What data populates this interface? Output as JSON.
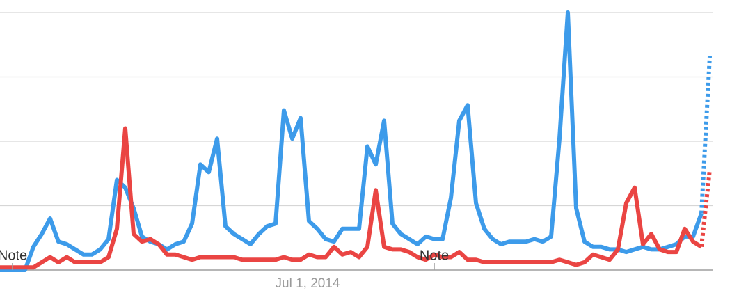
{
  "chart_data": {
    "type": "line",
    "categories": [
      null,
      null,
      null,
      null,
      null,
      null,
      null,
      null,
      null,
      null,
      null,
      null,
      null,
      null,
      null,
      null,
      null,
      null,
      null,
      null,
      null,
      null,
      null,
      null,
      null,
      null,
      null,
      null,
      null,
      null,
      null,
      null,
      null,
      null,
      null,
      null,
      null,
      "Jul 1, 2014",
      null,
      null,
      null,
      null,
      null,
      null,
      null,
      null,
      null,
      null,
      null,
      null,
      null,
      null,
      null,
      null,
      null,
      null,
      null,
      null,
      null,
      null,
      null,
      null,
      null,
      null,
      null,
      null,
      null,
      null,
      null,
      null,
      null,
      null,
      null,
      null,
      null,
      null,
      null,
      null,
      null,
      null,
      null,
      null,
      null,
      null,
      null,
      null
    ],
    "series": [
      {
        "color": "#3d9bea",
        "values": [
          0,
          0,
          0,
          0,
          9,
          14,
          20,
          11,
          10,
          8,
          6,
          6,
          8,
          12,
          35,
          32,
          24,
          13,
          11,
          10,
          8,
          10,
          11,
          18,
          41,
          38,
          51,
          17,
          14,
          12,
          10,
          14,
          17,
          18,
          62,
          51,
          59,
          19,
          16,
          12,
          11,
          16,
          16,
          16,
          48,
          41,
          58,
          18,
          14,
          12,
          10,
          13,
          12,
          12,
          28,
          58,
          64,
          26,
          16,
          12,
          10,
          11,
          11,
          11,
          12,
          11,
          13,
          51,
          100,
          24,
          11,
          9,
          9,
          8,
          8,
          7,
          8,
          9,
          8,
          8,
          9,
          10,
          13,
          13,
          22,
          83
        ]
      },
      {
        "color": "#ea4543",
        "values": [
          1,
          1,
          1,
          1,
          1,
          3,
          5,
          3,
          5,
          3,
          3,
          3,
          3,
          5,
          16,
          55,
          14,
          11,
          12,
          10,
          6,
          6,
          5,
          4,
          5,
          5,
          5,
          5,
          5,
          4,
          4,
          4,
          4,
          4,
          5,
          4,
          4,
          6,
          5,
          5,
          9,
          6,
          7,
          5,
          9,
          31,
          9,
          8,
          8,
          7,
          5,
          4,
          6,
          5,
          5,
          7,
          4,
          4,
          3,
          3,
          3,
          3,
          3,
          3,
          3,
          3,
          3,
          4,
          3,
          2,
          3,
          6,
          5,
          4,
          8,
          26,
          32,
          10,
          14,
          8,
          7,
          7,
          16,
          11,
          9,
          39
        ]
      }
    ],
    "partial_from": 84,
    "annotations": [
      {
        "text": "Note",
        "at": 1.5
      },
      {
        "text": "Note",
        "at": 52
      }
    ],
    "ylim": [
      0,
      100
    ],
    "yticks": [
      0,
      25,
      50,
      75,
      100
    ],
    "grid": true,
    "ytick_labels": false
  }
}
